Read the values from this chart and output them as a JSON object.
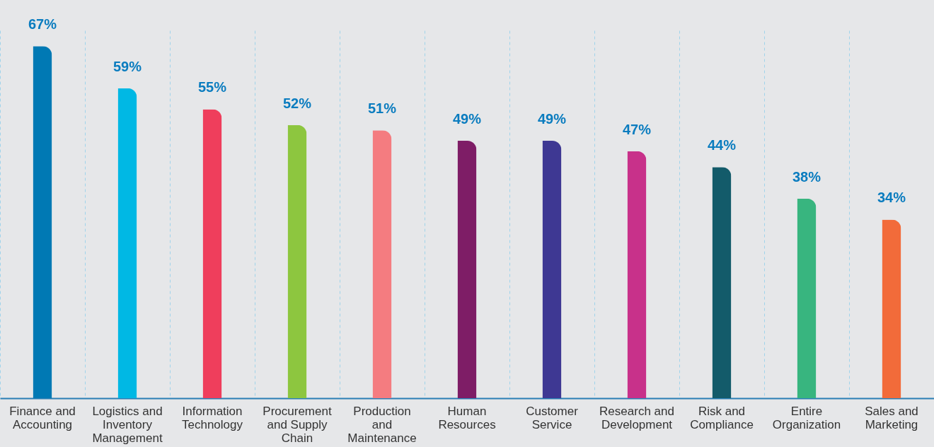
{
  "chart_data": {
    "type": "bar",
    "categories": [
      "Finance and Accounting",
      "Logistics and Inventory Management",
      "Information Technology",
      "Procurement and Supply Chain",
      "Production and Maintenance",
      "Human Resources",
      "Customer Service",
      "Research and Development",
      "Risk and Compliance",
      "Entire Organization",
      "Sales and Marketing"
    ],
    "values": [
      67,
      59,
      55,
      52,
      51,
      49,
      49,
      47,
      44,
      38,
      34
    ],
    "colors": [
      "#0079b4",
      "#00b8e4",
      "#ef3e5c",
      "#8dc63f",
      "#f47c80",
      "#7e1d66",
      "#3e3893",
      "#c8318a",
      "#135b6a",
      "#38b57f",
      "#f26b3a"
    ],
    "value_labels": [
      "67%",
      "59%",
      "55%",
      "52%",
      "51%",
      "49%",
      "49%",
      "47%",
      "44%",
      "38%",
      "34%"
    ],
    "grid": "x"
  }
}
